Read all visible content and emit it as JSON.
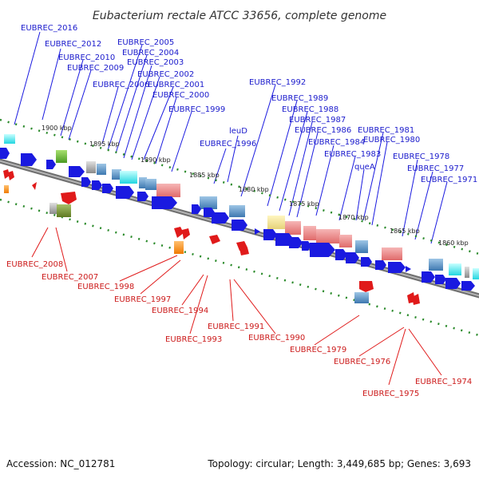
{
  "title": "Eubacterium rectale ATCC 33656, complete genome",
  "accession": "Accession: NC_012781",
  "topology": "Topology: circular; Length: 3,449,685 bp; Genes: 3,693",
  "colors": {
    "top_label": "#1a1acc",
    "bottom_label": "#cc1a1a",
    "forward_gene": "#1a1ae0",
    "reverse_gene": "#e01a1a",
    "backbone": "#888888",
    "tick": "#2a8a2a"
  },
  "kbp_ticks": [
    "1900 kbp",
    "1895 kbp",
    "1890 kbp",
    "1885 kbp",
    "1880 kbp",
    "1875 kbp",
    "1870 kbp",
    "1865 kbp",
    "1860 kbp"
  ],
  "top_labels": [
    "EUBREC_2016",
    "EUBREC_2012",
    "EUBREC_2010",
    "EUBREC_2009",
    "EUBREC_2005",
    "EUBREC_2004",
    "EUBREC_2003",
    "EUBREC_2002",
    "EUBREC_2006",
    "EUBREC_2001",
    "EUBREC_2000",
    "EUBREC_1999",
    "EUBREC_1992",
    "EUBREC_1989",
    "EUBREC_1988",
    "EUBREC_1987",
    "EUBREC_1986",
    "leuD",
    "EUBREC_1996",
    "EUBREC_1984",
    "EUBREC_1981",
    "EUBREC_1980",
    "EUBREC_1983",
    "queA",
    "EUBREC_1978",
    "EUBREC_1977",
    "EUBREC_1971"
  ],
  "bottom_labels": [
    "EUBREC_2008",
    "EUBREC_2007",
    "EUBREC_1998",
    "EUBREC_1997",
    "EUBREC_1994",
    "EUBREC_1993",
    "EUBREC_1991",
    "EUBREC_1990",
    "EUBREC_1979",
    "EUBREC_1976",
    "EUBREC_1975",
    "EUBREC_1974"
  ]
}
